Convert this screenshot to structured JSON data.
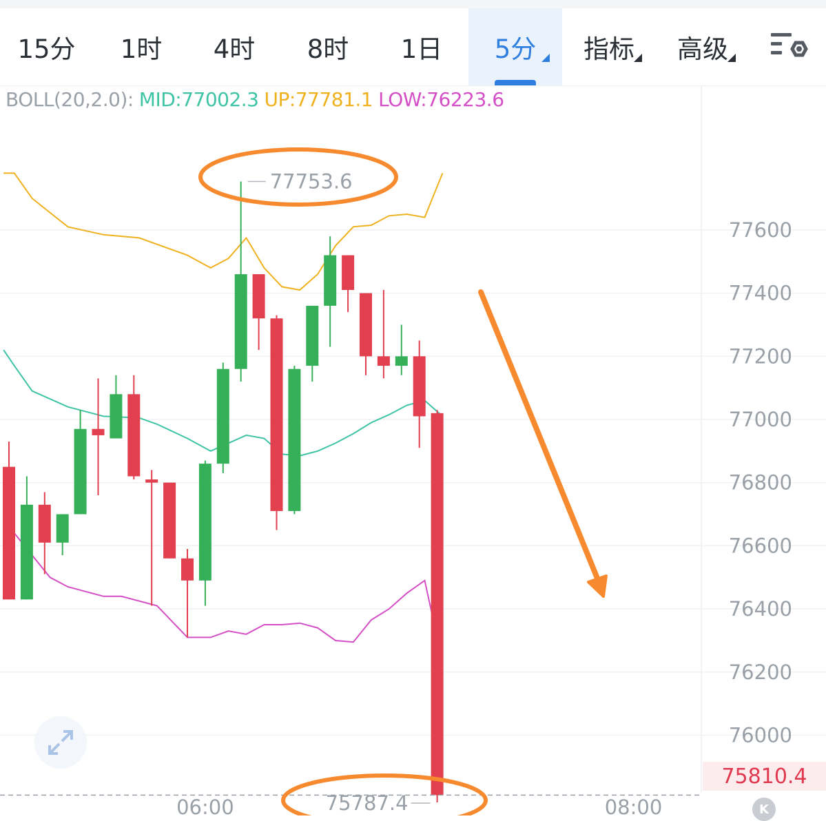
{
  "tabs": [
    {
      "label": "15分",
      "active": false
    },
    {
      "label": "1时",
      "active": false
    },
    {
      "label": "4时",
      "active": false
    },
    {
      "label": "8时",
      "active": false
    },
    {
      "label": "1日",
      "active": false
    },
    {
      "label": "5分",
      "active": true,
      "dropdown": true
    },
    {
      "label": "指标",
      "active": false,
      "dropdown": true
    },
    {
      "label": "高级",
      "active": false,
      "dropdown": true
    }
  ],
  "settings_icon": "candlestick-settings-icon",
  "legend": {
    "name": "BOLL(20,2.0):",
    "mid": "MID:77002.3",
    "up": "UP:77781.1",
    "low": "LOW:76223.6"
  },
  "colors": {
    "up_candle": "#36b058",
    "down_candle": "#e2404f",
    "mid_line": "#3ec4a5",
    "up_line": "#f0b11e",
    "low_line": "#d44fc6",
    "annotation": "#f78a2e",
    "active_tab": "#2f7fe0"
  },
  "expand_icon": "expand-icon",
  "k_badge": "K",
  "chart_data": {
    "type": "candlestick",
    "interval": "5分",
    "y_ticks": [
      "77600",
      "77400",
      "77200",
      "77000",
      "76800",
      "76600",
      "76400",
      "76200",
      "76000"
    ],
    "x_ticks": [
      {
        "label": "06:00",
        "index": 11
      },
      {
        "label": "08:00",
        "index": 35
      }
    ],
    "ylim": [
      75770,
      77950
    ],
    "current_price": "75810.4",
    "high_label": "77753.6",
    "low_label": "75787.4",
    "candles": [
      {
        "o": 76850,
        "h": 76930,
        "l": 76430,
        "c": 76430
      },
      {
        "o": 76430,
        "h": 76820,
        "l": 76430,
        "c": 76730
      },
      {
        "o": 76730,
        "h": 76770,
        "l": 76510,
        "c": 76610
      },
      {
        "o": 76610,
        "h": 76680,
        "l": 76570,
        "c": 76700
      },
      {
        "o": 76700,
        "h": 77030,
        "l": 76700,
        "c": 76970
      },
      {
        "o": 76970,
        "h": 77130,
        "l": 76760,
        "c": 76950
      },
      {
        "o": 76940,
        "h": 77140,
        "l": 76940,
        "c": 77080
      },
      {
        "o": 77080,
        "h": 77140,
        "l": 76810,
        "c": 76820
      },
      {
        "o": 76810,
        "h": 76840,
        "l": 76410,
        "c": 76800
      },
      {
        "o": 76800,
        "h": 76800,
        "l": 76560,
        "c": 76560
      },
      {
        "o": 76560,
        "h": 76590,
        "l": 76310,
        "c": 76490
      },
      {
        "o": 76490,
        "h": 76870,
        "l": 76410,
        "c": 76860
      },
      {
        "o": 76860,
        "h": 77180,
        "l": 76830,
        "c": 77160
      },
      {
        "o": 77160,
        "h": 77753.6,
        "l": 77120,
        "c": 77460
      },
      {
        "o": 77460,
        "h": 77460,
        "l": 77220,
        "c": 77320
      },
      {
        "o": 77320,
        "h": 77330,
        "l": 76650,
        "c": 76710
      },
      {
        "o": 76710,
        "h": 77170,
        "l": 76700,
        "c": 77160
      },
      {
        "o": 77170,
        "h": 77360,
        "l": 77120,
        "c": 77360
      },
      {
        "o": 77360,
        "h": 77580,
        "l": 77230,
        "c": 77520
      },
      {
        "o": 77520,
        "h": 77520,
        "l": 77340,
        "c": 77410
      },
      {
        "o": 77400,
        "h": 77400,
        "l": 77140,
        "c": 77200
      },
      {
        "o": 77200,
        "h": 77410,
        "l": 77130,
        "c": 77170
      },
      {
        "o": 77170,
        "h": 77300,
        "l": 77140,
        "c": 77200
      },
      {
        "o": 77200,
        "h": 77250,
        "l": 76910,
        "c": 77010
      },
      {
        "o": 77020,
        "h": 77030,
        "l": 75787.4,
        "c": 75810.4
      }
    ],
    "boll": {
      "up": [
        {
          "i": -0.3,
          "v": 77780
        },
        {
          "i": 0.3,
          "v": 77780
        },
        {
          "i": 1.3,
          "v": 77700
        },
        {
          "i": 3.3,
          "v": 77610
        },
        {
          "i": 5.3,
          "v": 77585
        },
        {
          "i": 7.3,
          "v": 77575
        },
        {
          "i": 10,
          "v": 77520
        },
        {
          "i": 11.3,
          "v": 77480
        },
        {
          "i": 12.3,
          "v": 77510
        },
        {
          "i": 13.3,
          "v": 77575
        },
        {
          "i": 14.3,
          "v": 77480
        },
        {
          "i": 15.3,
          "v": 77420
        },
        {
          "i": 16.3,
          "v": 77410
        },
        {
          "i": 17.3,
          "v": 77460
        },
        {
          "i": 18.3,
          "v": 77550
        },
        {
          "i": 19.3,
          "v": 77610
        },
        {
          "i": 20.3,
          "v": 77615
        },
        {
          "i": 21.3,
          "v": 77645
        },
        {
          "i": 22.3,
          "v": 77650
        },
        {
          "i": 23.3,
          "v": 77640
        },
        {
          "i": 24.3,
          "v": 77780
        }
      ],
      "mid": [
        {
          "i": -0.3,
          "v": 77220
        },
        {
          "i": 0.3,
          "v": 77170
        },
        {
          "i": 1.3,
          "v": 77090
        },
        {
          "i": 3.3,
          "v": 77040
        },
        {
          "i": 5.3,
          "v": 77010
        },
        {
          "i": 7.3,
          "v": 77005
        },
        {
          "i": 8.3,
          "v": 76985
        },
        {
          "i": 10,
          "v": 76940
        },
        {
          "i": 11.3,
          "v": 76900
        },
        {
          "i": 12.3,
          "v": 76925
        },
        {
          "i": 13.3,
          "v": 76950
        },
        {
          "i": 14.3,
          "v": 76940
        },
        {
          "i": 15.3,
          "v": 76890
        },
        {
          "i": 16.3,
          "v": 76885
        },
        {
          "i": 17.3,
          "v": 76900
        },
        {
          "i": 18.3,
          "v": 76925
        },
        {
          "i": 19.3,
          "v": 76955
        },
        {
          "i": 20.3,
          "v": 76990
        },
        {
          "i": 21.3,
          "v": 77015
        },
        {
          "i": 22.3,
          "v": 77045
        },
        {
          "i": 23.3,
          "v": 77060
        },
        {
          "i": 24.3,
          "v": 77010
        }
      ],
      "low": [
        {
          "i": -0.3,
          "v": 76680
        },
        {
          "i": 0.3,
          "v": 76640
        },
        {
          "i": 1.3,
          "v": 76570
        },
        {
          "i": 2.3,
          "v": 76500
        },
        {
          "i": 3.3,
          "v": 76470
        },
        {
          "i": 5.3,
          "v": 76440
        },
        {
          "i": 6.3,
          "v": 76440
        },
        {
          "i": 8.3,
          "v": 76410
        },
        {
          "i": 10,
          "v": 76310
        },
        {
          "i": 11.3,
          "v": 76310
        },
        {
          "i": 12.3,
          "v": 76330
        },
        {
          "i": 13.3,
          "v": 76320
        },
        {
          "i": 14.3,
          "v": 76350
        },
        {
          "i": 15.3,
          "v": 76350
        },
        {
          "i": 16.3,
          "v": 76355
        },
        {
          "i": 17.3,
          "v": 76340
        },
        {
          "i": 18.3,
          "v": 76300
        },
        {
          "i": 19.3,
          "v": 76295
        },
        {
          "i": 20.3,
          "v": 76365
        },
        {
          "i": 21.3,
          "v": 76400
        },
        {
          "i": 22.3,
          "v": 76450
        },
        {
          "i": 23.3,
          "v": 76490
        },
        {
          "i": 24.3,
          "v": 76230
        }
      ]
    }
  }
}
